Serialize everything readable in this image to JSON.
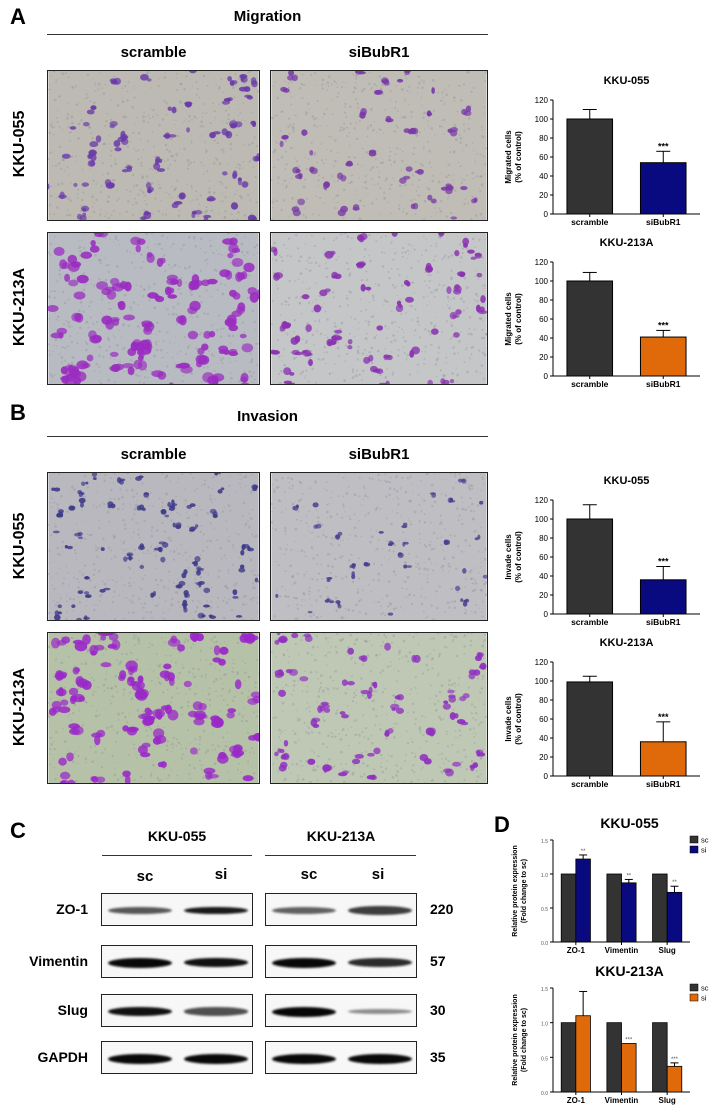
{
  "panels": {
    "A": {
      "letter": "A",
      "title": "Migration",
      "col_labels": [
        "scramble",
        "siBubR1"
      ],
      "row_labels": [
        "KKU-055",
        "KKU-213A"
      ]
    },
    "B": {
      "letter": "B",
      "title": "Invasion",
      "col_labels": [
        "scramble",
        "siBubR1"
      ],
      "row_labels": [
        "KKU-055",
        "KKU-213A"
      ]
    },
    "C": {
      "letter": "C",
      "cell_lines": [
        "KKU-055",
        "KKU-213A"
      ],
      "lanes": [
        "sc",
        "si",
        "sc",
        "si"
      ],
      "proteins": [
        {
          "name": "ZO-1",
          "mw": "220"
        },
        {
          "name": "Vimentin",
          "mw": "57"
        },
        {
          "name": "Slug",
          "mw": "30"
        },
        {
          "name": "GAPDH",
          "mw": "35"
        }
      ]
    },
    "D": {
      "letter": "D"
    }
  },
  "colors": {
    "scramble": "#333333",
    "si_kku055": "#0a0a80",
    "si_kku213a": "#e06a0a",
    "migration_stain": "#7a3fb0",
    "invasion_stain_055": "#4a3a90",
    "invasion_stain_213a": "#9a30c0"
  },
  "chart_data": [
    {
      "type": "bar",
      "title": "KKU-055",
      "panel": "A",
      "categories": [
        "scramble",
        "siBubR1"
      ],
      "values": [
        100,
        54
      ],
      "errors": [
        10,
        12
      ],
      "annotations": [
        "",
        "***"
      ],
      "ylabel": "Migrated cells\n(% of control)",
      "ylabel_line1": "Migrated cells",
      "ylabel_line2": "(% of control)",
      "ylim": [
        0,
        120
      ],
      "yticks": [
        0,
        20,
        40,
        60,
        80,
        100,
        120
      ],
      "colors": [
        "#333333",
        "#0a0a80"
      ]
    },
    {
      "type": "bar",
      "title": "KKU-213A",
      "panel": "A",
      "categories": [
        "scramble",
        "siBubR1"
      ],
      "values": [
        100,
        41
      ],
      "errors": [
        9,
        7
      ],
      "annotations": [
        "",
        "***"
      ],
      "ylabel_line1": "Migrated cells",
      "ylabel_line2": "(% of control)",
      "ylim": [
        0,
        120
      ],
      "yticks": [
        0,
        20,
        40,
        60,
        80,
        100,
        120
      ],
      "colors": [
        "#333333",
        "#e06a0a"
      ]
    },
    {
      "type": "bar",
      "title": "KKU-055",
      "panel": "B",
      "categories": [
        "scramble",
        "siBubR1"
      ],
      "values": [
        100,
        36
      ],
      "errors": [
        15,
        14
      ],
      "annotations": [
        "",
        "***"
      ],
      "ylabel_line1": "Invade cells",
      "ylabel_line2": "(% of control)",
      "ylim": [
        0,
        120
      ],
      "yticks": [
        0,
        20,
        40,
        60,
        80,
        100,
        120
      ],
      "colors": [
        "#333333",
        "#0a0a80"
      ]
    },
    {
      "type": "bar",
      "title": "KKU-213A",
      "panel": "B",
      "categories": [
        "scramble",
        "siBubR1"
      ],
      "values": [
        99,
        36
      ],
      "errors": [
        6,
        21
      ],
      "annotations": [
        "",
        "***"
      ],
      "ylabel_line1": "Invade cells",
      "ylabel_line2": "(% of control)",
      "ylim": [
        0,
        120
      ],
      "yticks": [
        0,
        20,
        40,
        60,
        80,
        100,
        120
      ],
      "colors": [
        "#333333",
        "#e06a0a"
      ]
    },
    {
      "type": "bar",
      "title": "KKU-055",
      "panel": "D",
      "categories": [
        "ZO-1",
        "Vimentin",
        "Slug"
      ],
      "series": [
        {
          "name": "sc",
          "values": [
            1.0,
            1.0,
            1.0
          ],
          "errors": [
            0,
            0,
            0
          ],
          "color": "#333333"
        },
        {
          "name": "si",
          "values": [
            1.22,
            0.87,
            0.73
          ],
          "errors": [
            0.06,
            0.05,
            0.09
          ],
          "color": "#0a0a80"
        }
      ],
      "annotations": [
        "**",
        "**",
        "**"
      ],
      "ylabel_line1": "Relative protein expression",
      "ylabel_line2": "(Fold change to sc)",
      "ylim": [
        0,
        1.5
      ],
      "yticks": [
        0.0,
        0.5,
        1.0,
        1.5
      ],
      "legend": [
        "sc",
        "si"
      ],
      "legend_position": "top-right"
    },
    {
      "type": "bar",
      "title": "KKU-213A",
      "panel": "D",
      "categories": [
        "ZO-1",
        "Vimentin",
        "Slug"
      ],
      "series": [
        {
          "name": "sc",
          "values": [
            1.0,
            1.0,
            1.0
          ],
          "errors": [
            0,
            0,
            0
          ],
          "color": "#333333"
        },
        {
          "name": "si",
          "values": [
            1.1,
            0.7,
            0.37
          ],
          "errors": [
            0.35,
            0.0,
            0.05
          ],
          "color": "#e06a0a"
        }
      ],
      "annotations": [
        "",
        "***",
        "***"
      ],
      "ylabel_line1": "Relative protein expression",
      "ylabel_line2": "(Fold change to sc)",
      "ylim": [
        0,
        1.5
      ],
      "yticks": [
        0.0,
        0.5,
        1.0,
        1.5
      ],
      "legend": [
        "sc",
        "si"
      ],
      "legend_position": "top-right"
    }
  ]
}
